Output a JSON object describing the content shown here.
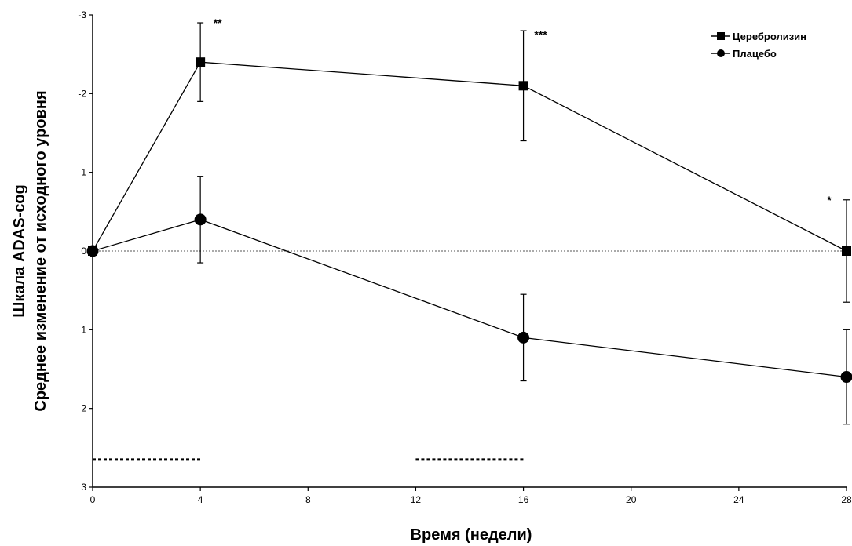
{
  "chart_data": {
    "type": "line",
    "xlabel": "Время (недели)",
    "ylabel_line1": "Шкала ADAS-cog",
    "ylabel_line2": "Среднее изменение от исходного уровня",
    "xlim": [
      0,
      28
    ],
    "ylim": [
      3,
      -3
    ],
    "y_inverted": true,
    "x_ticks": [
      0,
      4,
      8,
      12,
      16,
      20,
      24,
      28
    ],
    "y_ticks": [
      -3,
      -2,
      -1,
      0,
      1,
      2,
      3
    ],
    "y_tick_labels": [
      "-3",
      "-2",
      "-1",
      "0",
      "1",
      "2",
      "3"
    ],
    "x_tick_labels": [
      "0",
      "4",
      "8",
      "12",
      "16",
      "20",
      "24",
      "28"
    ],
    "grid": false,
    "legend_position": "top-right",
    "reference_line_y": 0,
    "series": [
      {
        "name": "Церебролизин",
        "marker": "square",
        "x": [
          0,
          4,
          16,
          28
        ],
        "y": [
          0,
          -2.4,
          -2.1,
          0
        ],
        "err": [
          0,
          0.5,
          0.7,
          0.65
        ]
      },
      {
        "name": "Плацебо",
        "marker": "circle",
        "x": [
          0,
          4,
          16,
          28
        ],
        "y": [
          0,
          -0.4,
          1.1,
          1.6
        ],
        "err": [
          0,
          0.55,
          0.55,
          0.6
        ]
      }
    ],
    "annotations": [
      {
        "text": "**",
        "x": 4,
        "y": -2.9
      },
      {
        "text": "***",
        "x": 16,
        "y": -2.75
      },
      {
        "text": "*",
        "x": 28,
        "y": -0.65
      }
    ],
    "treatment_periods": [
      {
        "x0": 0,
        "x1": 4,
        "y": 2.65
      },
      {
        "x0": 12,
        "x1": 16,
        "y": 2.65
      }
    ]
  }
}
